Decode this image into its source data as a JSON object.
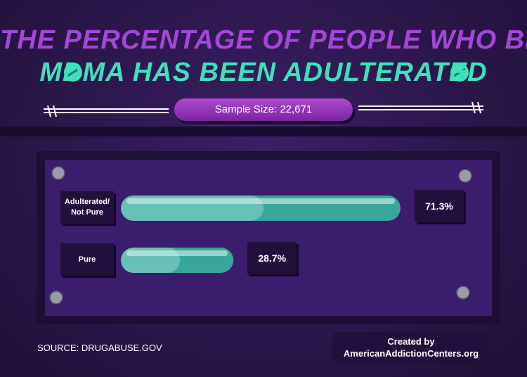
{
  "chart_data": {
    "type": "bar",
    "orientation": "horizontal",
    "title": "THE PERCENTAGE OF PEOPLE WHO BELIEVE",
    "subtitle": "MDMA HAS BEEN ADULTERATED",
    "note": "Sample Size: 22,671",
    "categories": [
      "Adulterated/ Not Pure",
      "Pure"
    ],
    "values": [
      71.3,
      28.7
    ],
    "value_labels": [
      "71.3%",
      "28.7%"
    ],
    "color": "#3aa69a",
    "source": "SOURCE: DRUGABUSE.GOV",
    "credit": [
      "Created by",
      "AmericanAddictionCenters.org"
    ]
  }
}
